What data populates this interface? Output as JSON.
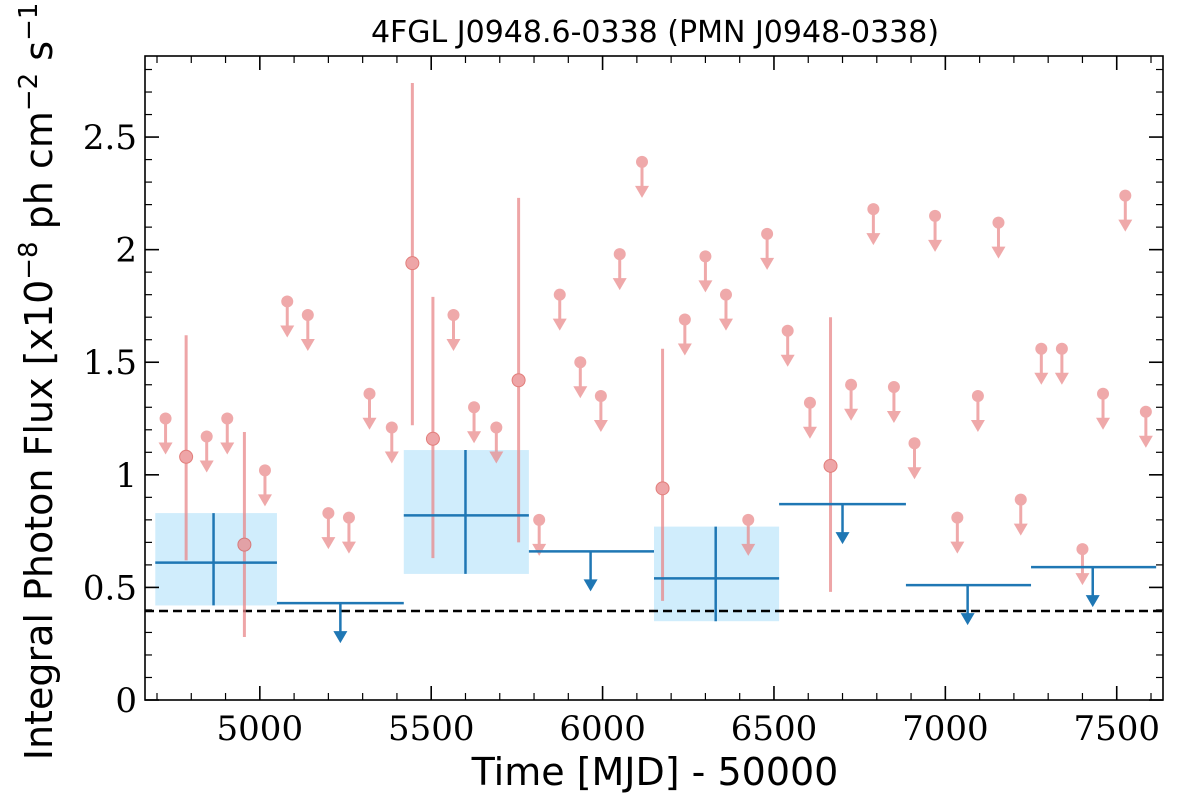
{
  "chart_data": {
    "type": "scatter",
    "title": "4FGL J0948.6-0338 (PMN J0948-0338)",
    "xlabel": "Time [MJD] - 50000",
    "ylabel": "Integral Photon Flux [x10",
    "ylabel_exp1": "−8",
    "ylabel_mid": " ph cm",
    "ylabel_exp2": "−2",
    "ylabel_s": " s",
    "ylabel_exp3": "−1",
    "ylabel_end": "]",
    "xlim": [
      4665,
      7635
    ],
    "ylim": [
      0,
      2.86
    ],
    "xticks": [
      5000,
      5500,
      6000,
      6500,
      7000,
      7500
    ],
    "xtick_labels": [
      "5000",
      "5500",
      "6000",
      "6500",
      "7000",
      "7500"
    ],
    "yticks": [
      0,
      0.5,
      1,
      1.5,
      2,
      2.5
    ],
    "ytick_labels": [
      "0",
      "0.5",
      "1",
      "1.5",
      "2",
      "2.5"
    ],
    "reference_line": {
      "y": 0.395,
      "style": "dashed",
      "color": "#000000"
    },
    "short_bins": {
      "name": "",
      "color": "#e9888a",
      "detections": [
        {
          "x": 4785,
          "y": 1.08,
          "ylo": 0.62,
          "yhi": 1.62
        },
        {
          "x": 4955,
          "y": 0.69,
          "ylo": 0.28,
          "yhi": 1.19
        },
        {
          "x": 5445,
          "y": 1.94,
          "ylo": 1.22,
          "yhi": 2.74
        },
        {
          "x": 5505,
          "y": 1.16,
          "ylo": 0.63,
          "yhi": 1.79
        },
        {
          "x": 5755,
          "y": 1.42,
          "ylo": 0.7,
          "yhi": 2.23
        },
        {
          "x": 6175,
          "y": 0.94,
          "ylo": 0.44,
          "yhi": 1.56
        },
        {
          "x": 6665,
          "y": 1.04,
          "ylo": 0.48,
          "yhi": 1.7
        }
      ],
      "upper_limits": [
        {
          "x": 4725,
          "y": 1.25
        },
        {
          "x": 4845,
          "y": 1.17
        },
        {
          "x": 4905,
          "y": 1.25
        },
        {
          "x": 5015,
          "y": 1.02
        },
        {
          "x": 5080,
          "y": 1.77
        },
        {
          "x": 5140,
          "y": 1.71
        },
        {
          "x": 5200,
          "y": 0.83
        },
        {
          "x": 5260,
          "y": 0.81
        },
        {
          "x": 5320,
          "y": 1.36
        },
        {
          "x": 5385,
          "y": 1.21
        },
        {
          "x": 5565,
          "y": 1.71
        },
        {
          "x": 5625,
          "y": 1.3
        },
        {
          "x": 5690,
          "y": 1.21
        },
        {
          "x": 5815,
          "y": 0.8
        },
        {
          "x": 5875,
          "y": 1.8
        },
        {
          "x": 5935,
          "y": 1.5
        },
        {
          "x": 5995,
          "y": 1.35
        },
        {
          "x": 6050,
          "y": 1.98
        },
        {
          "x": 6115,
          "y": 2.39
        },
        {
          "x": 6240,
          "y": 1.69
        },
        {
          "x": 6300,
          "y": 1.97
        },
        {
          "x": 6360,
          "y": 1.8
        },
        {
          "x": 6425,
          "y": 0.8
        },
        {
          "x": 6480,
          "y": 2.07
        },
        {
          "x": 6540,
          "y": 1.64
        },
        {
          "x": 6605,
          "y": 1.32
        },
        {
          "x": 6725,
          "y": 1.4
        },
        {
          "x": 6790,
          "y": 2.18
        },
        {
          "x": 6850,
          "y": 1.39
        },
        {
          "x": 6910,
          "y": 1.14
        },
        {
          "x": 6970,
          "y": 2.15
        },
        {
          "x": 7035,
          "y": 0.81
        },
        {
          "x": 7095,
          "y": 1.35
        },
        {
          "x": 7155,
          "y": 2.12
        },
        {
          "x": 7220,
          "y": 0.89
        },
        {
          "x": 7280,
          "y": 1.56
        },
        {
          "x": 7340,
          "y": 1.56
        },
        {
          "x": 7400,
          "y": 0.67
        },
        {
          "x": 7460,
          "y": 1.36
        },
        {
          "x": 7525,
          "y": 2.24
        },
        {
          "x": 7585,
          "y": 1.28
        }
      ]
    },
    "long_bins": {
      "name": "",
      "color": "#1f77b4",
      "band_color": "#d0edfc",
      "detections": [
        {
          "x": 4865,
          "xlo": 4695,
          "xhi": 5050,
          "y": 0.61,
          "ylo": 0.42,
          "yhi": 0.83
        },
        {
          "x": 5600,
          "xlo": 5420,
          "xhi": 5785,
          "y": 0.82,
          "ylo": 0.56,
          "yhi": 1.11
        },
        {
          "x": 6330,
          "xlo": 6150,
          "xhi": 6515,
          "y": 0.54,
          "ylo": 0.35,
          "yhi": 0.77
        }
      ],
      "upper_limits": [
        {
          "x": 5235,
          "xlo": 5050,
          "xhi": 5420,
          "y": 0.43
        },
        {
          "x": 5965,
          "xlo": 5785,
          "xhi": 6150,
          "y": 0.66
        },
        {
          "x": 6700,
          "xlo": 6515,
          "xhi": 6885,
          "y": 0.87
        },
        {
          "x": 7065,
          "xlo": 6885,
          "xhi": 7250,
          "y": 0.51
        },
        {
          "x": 7430,
          "xlo": 7250,
          "xhi": 7615,
          "y": 0.59
        }
      ]
    }
  }
}
